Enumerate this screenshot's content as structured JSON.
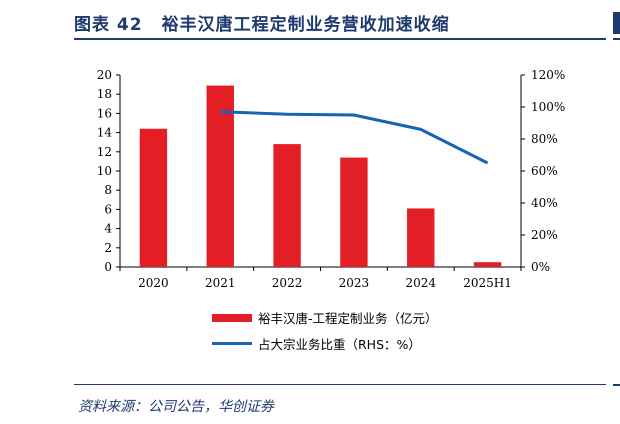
{
  "header": {
    "figure_label": "图表 42",
    "title": "裕丰汉唐工程定制业务营收加速收缩"
  },
  "source": "资料来源：公司公告，华创证券",
  "colors": {
    "bar": "#e31e24",
    "line": "#1565b3",
    "brand": "#1f3a6e"
  },
  "chart_data": {
    "type": "bar",
    "categories": [
      "2020",
      "2021",
      "2022",
      "2023",
      "2024",
      "2025H1"
    ],
    "series": [
      {
        "name": "裕丰汉唐-工程定制业务（亿元）",
        "type": "bar",
        "axis": "left",
        "values": [
          14.4,
          18.9,
          12.8,
          11.4,
          6.1,
          0.5
        ]
      },
      {
        "name": "占大宗业务比重（RHS：%）",
        "type": "line",
        "axis": "right",
        "values": [
          null,
          97,
          95.5,
          95,
          86,
          65
        ]
      }
    ],
    "y_left": {
      "ylim": [
        0,
        20
      ],
      "ticks": [
        "0",
        "2",
        "4",
        "6",
        "8",
        "10",
        "12",
        "14",
        "16",
        "18",
        "20"
      ]
    },
    "y_right": {
      "ylim": [
        0,
        120
      ],
      "ticks": [
        "0%",
        "20%",
        "40%",
        "60%",
        "80%",
        "100%",
        "120%"
      ]
    },
    "legend": "bottom",
    "grid": false
  }
}
